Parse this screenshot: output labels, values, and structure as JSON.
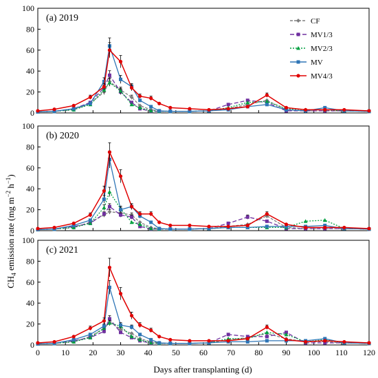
{
  "figure": {
    "ylabel_main": "CH",
    "ylabel_sub": "4",
    "ylabel_rest": " emission rate (mg m",
    "ylabel_sup1": "−2",
    "ylabel_mid": " h",
    "ylabel_sup2": "−1",
    "ylabel_end": ")",
    "xlabel": "Days after transplanting (d)"
  },
  "legend": [
    {
      "name": "CF",
      "color": "#7f7f7f",
      "marker": "diamond",
      "dash": "4,2"
    },
    {
      "name": "MV1/3",
      "color": "#7030a0",
      "marker": "square",
      "dash": "6,3"
    },
    {
      "name": "MV2/3",
      "color": "#00a040",
      "marker": "triangle",
      "dash": "2,2"
    },
    {
      "name": "MV",
      "color": "#2e75b6",
      "marker": "square",
      "dash": ""
    },
    {
      "name": "MV4/3",
      "color": "#e00000",
      "marker": "circle",
      "dash": ""
    }
  ],
  "chart_data": [
    {
      "type": "line",
      "panel_label": "(a) 2019",
      "xlim": [
        0,
        120
      ],
      "ylim": [
        0,
        100
      ],
      "x_ticks": [
        0,
        10,
        20,
        30,
        40,
        50,
        60,
        70,
        80,
        90,
        100,
        110,
        120
      ],
      "y_ticks": [
        0,
        20,
        40,
        60,
        80,
        100
      ],
      "series": [
        {
          "name": "CF",
          "x": [
            0,
            6,
            13,
            19,
            24,
            26,
            30,
            34,
            37,
            41,
            44,
            48,
            55,
            62,
            69,
            76,
            83,
            90,
            97,
            104,
            111,
            120
          ],
          "y": [
            1,
            1.5,
            3,
            9,
            20,
            30,
            22,
            15,
            7,
            3,
            2,
            1.5,
            1.5,
            2,
            4,
            8,
            12,
            3,
            2,
            2,
            2,
            1.5
          ]
        },
        {
          "name": "MV1/3",
          "x": [
            0,
            6,
            13,
            19,
            24,
            26,
            30,
            34,
            37,
            41,
            44,
            48,
            55,
            62,
            69,
            76,
            83,
            90,
            97,
            104,
            111,
            120
          ],
          "y": [
            1,
            1.5,
            4,
            10,
            24,
            36,
            20,
            10,
            4,
            1.5,
            1.5,
            1.5,
            1.5,
            2,
            8,
            12,
            10,
            2,
            2,
            2,
            2,
            1.5
          ]
        },
        {
          "name": "MV2/3",
          "x": [
            0,
            6,
            13,
            19,
            24,
            26,
            30,
            34,
            37,
            41,
            44,
            48,
            55,
            62,
            69,
            76,
            83,
            90,
            97,
            104,
            111,
            120
          ],
          "y": [
            1,
            1.5,
            3,
            8,
            22,
            29,
            21,
            8,
            5,
            2,
            1.5,
            1.5,
            1.5,
            2,
            5,
            10,
            11,
            4,
            3,
            3,
            2,
            1.5
          ]
        },
        {
          "name": "MV",
          "x": [
            0,
            6,
            13,
            19,
            24,
            26,
            30,
            34,
            37,
            41,
            44,
            48,
            55,
            62,
            69,
            76,
            83,
            90,
            97,
            104,
            111,
            120
          ],
          "y": [
            1,
            1.5,
            4,
            9,
            30,
            64,
            32,
            25,
            12,
            6,
            2,
            1.5,
            1.5,
            2,
            3,
            6,
            8,
            3,
            2,
            5,
            2,
            1.5
          ]
        },
        {
          "name": "MV4/3",
          "x": [
            0,
            6,
            13,
            19,
            24,
            26,
            30,
            34,
            37,
            41,
            44,
            48,
            55,
            62,
            69,
            76,
            83,
            90,
            97,
            104,
            111,
            120
          ],
          "y": [
            2,
            3.5,
            7,
            15,
            25,
            60,
            49,
            24,
            16,
            14,
            9,
            5,
            4,
            3,
            4,
            6,
            17,
            5,
            3,
            3,
            3,
            2
          ]
        }
      ]
    },
    {
      "type": "line",
      "panel_label": "(b) 2020",
      "xlim": [
        0,
        120
      ],
      "ylim": [
        0,
        100
      ],
      "x_ticks": [
        0,
        10,
        20,
        30,
        40,
        50,
        60,
        70,
        80,
        90,
        100,
        110,
        120
      ],
      "y_ticks": [
        0,
        20,
        40,
        60,
        80,
        100
      ],
      "series": [
        {
          "name": "CF",
          "x": [
            0,
            6,
            13,
            19,
            24,
            26,
            30,
            34,
            37,
            41,
            44,
            48,
            55,
            62,
            69,
            76,
            83,
            90,
            97,
            104,
            111,
            120
          ],
          "y": [
            1,
            1.5,
            3,
            8,
            15,
            18,
            17,
            15,
            8,
            3,
            2,
            1.5,
            1.5,
            2,
            4,
            6,
            14,
            3,
            2,
            2,
            2,
            1.5
          ]
        },
        {
          "name": "MV1/3",
          "x": [
            0,
            6,
            13,
            19,
            24,
            26,
            30,
            34,
            37,
            41,
            44,
            48,
            55,
            62,
            69,
            76,
            83,
            90,
            97,
            104,
            111,
            120
          ],
          "y": [
            1,
            1.5,
            4,
            7,
            16,
            23,
            15,
            13,
            4,
            1.5,
            1.5,
            1.5,
            1.5,
            2,
            7,
            13,
            9,
            2,
            2,
            2,
            2,
            1.5
          ]
        },
        {
          "name": "MV2/3",
          "x": [
            0,
            6,
            13,
            19,
            24,
            26,
            30,
            34,
            37,
            41,
            44,
            48,
            55,
            62,
            69,
            76,
            83,
            90,
            97,
            104,
            111,
            120
          ],
          "y": [
            1,
            1.5,
            3,
            7,
            22,
            37,
            21,
            8,
            6,
            2,
            1.5,
            1.5,
            1.5,
            2,
            3,
            3,
            3,
            3,
            9,
            10,
            2,
            1.5
          ]
        },
        {
          "name": "MV",
          "x": [
            0,
            6,
            13,
            19,
            24,
            26,
            30,
            34,
            37,
            41,
            44,
            48,
            55,
            62,
            69,
            76,
            83,
            90,
            97,
            104,
            111,
            120
          ],
          "y": [
            1,
            1.5,
            5,
            10,
            30,
            68,
            20,
            23,
            14,
            8,
            2,
            1.5,
            1.5,
            2,
            3,
            3,
            4,
            4,
            4,
            5,
            2,
            1.5
          ]
        },
        {
          "name": "MV4/3",
          "x": [
            0,
            6,
            13,
            19,
            24,
            26,
            30,
            34,
            37,
            41,
            44,
            48,
            55,
            62,
            69,
            76,
            83,
            90,
            97,
            104,
            111,
            120
          ],
          "y": [
            2,
            3,
            7,
            15,
            38,
            75,
            52,
            23,
            16,
            16,
            8,
            5,
            5,
            4,
            4,
            5,
            16,
            6,
            3,
            3,
            3,
            2
          ]
        }
      ]
    },
    {
      "type": "line",
      "panel_label": "(c) 2021",
      "xlim": [
        0,
        120
      ],
      "ylim": [
        0,
        100
      ],
      "x_ticks": [
        0,
        10,
        20,
        30,
        40,
        50,
        60,
        70,
        80,
        90,
        100,
        110,
        120
      ],
      "y_ticks": [
        0,
        20,
        40,
        60,
        80,
        100
      ],
      "series": [
        {
          "name": "CF",
          "x": [
            0,
            6,
            13,
            19,
            24,
            26,
            30,
            34,
            37,
            41,
            44,
            48,
            55,
            62,
            69,
            76,
            83,
            90,
            97,
            104,
            111,
            120
          ],
          "y": [
            1,
            1.5,
            3,
            8,
            16,
            22,
            15,
            11,
            6,
            3,
            2,
            1.5,
            1.5,
            2,
            5,
            7,
            11,
            6,
            3,
            3,
            2,
            1.5
          ]
        },
        {
          "name": "MV1/3",
          "x": [
            0,
            6,
            13,
            19,
            24,
            26,
            30,
            34,
            37,
            41,
            44,
            48,
            55,
            62,
            69,
            76,
            83,
            90,
            97,
            104,
            111,
            120
          ],
          "y": [
            1,
            1.5,
            4,
            7,
            13,
            25,
            12,
            7,
            4,
            1.5,
            1.5,
            1.5,
            1.5,
            2,
            10,
            8,
            8,
            12,
            2,
            2,
            2,
            1.5
          ]
        },
        {
          "name": "MV2/3",
          "x": [
            0,
            6,
            13,
            19,
            24,
            26,
            30,
            34,
            37,
            41,
            44,
            48,
            55,
            62,
            69,
            76,
            83,
            90,
            97,
            104,
            111,
            120
          ],
          "y": [
            1,
            1.5,
            3,
            7,
            16,
            21,
            18,
            8,
            5,
            2,
            1.5,
            1.5,
            1.5,
            2,
            6,
            6,
            12,
            10,
            3,
            5,
            2,
            1.5
          ]
        },
        {
          "name": "MV",
          "x": [
            0,
            6,
            13,
            19,
            24,
            26,
            30,
            34,
            37,
            41,
            44,
            48,
            55,
            62,
            69,
            76,
            83,
            90,
            97,
            104,
            111,
            120
          ],
          "y": [
            1,
            1.5,
            5,
            10,
            18,
            55,
            19,
            17,
            10,
            5,
            2,
            1.5,
            1.5,
            2,
            3,
            3,
            4,
            4,
            4,
            6,
            2,
            1.5
          ]
        },
        {
          "name": "MV4/3",
          "x": [
            0,
            6,
            13,
            19,
            24,
            26,
            30,
            34,
            37,
            41,
            44,
            48,
            55,
            62,
            69,
            76,
            83,
            90,
            97,
            104,
            111,
            120
          ],
          "y": [
            2,
            3,
            8,
            16,
            23,
            74,
            49,
            28,
            19,
            14,
            8,
            5,
            4,
            4,
            4,
            6,
            17,
            5,
            3,
            4,
            3,
            2
          ]
        }
      ]
    }
  ]
}
